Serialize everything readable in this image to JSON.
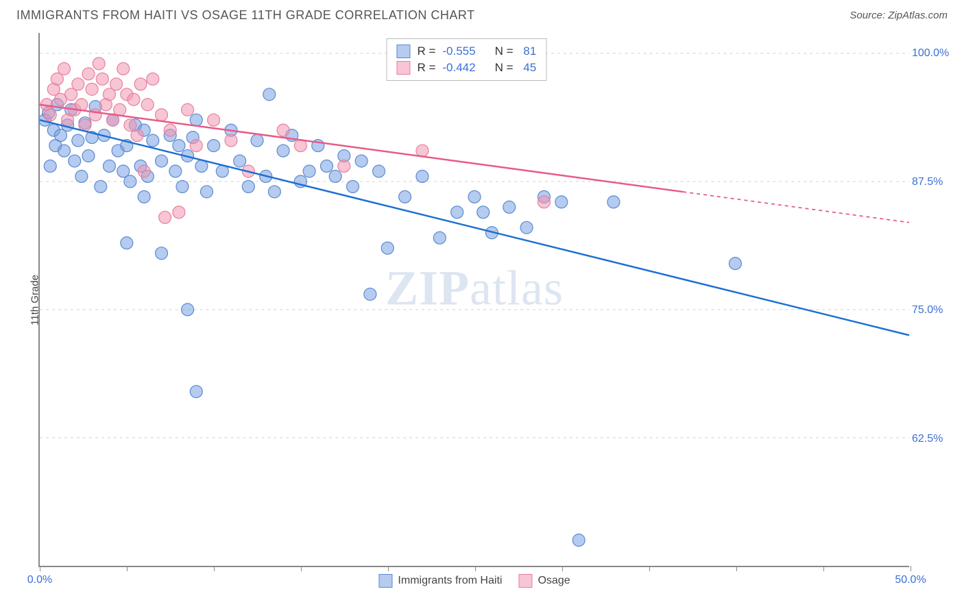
{
  "header": {
    "title": "IMMIGRANTS FROM HAITI VS OSAGE 11TH GRADE CORRELATION CHART",
    "source_prefix": "Source: ",
    "source_name": "ZipAtlas.com"
  },
  "watermark": {
    "zip": "ZIP",
    "atlas": "atlas"
  },
  "chart": {
    "type": "scatter",
    "y_axis_label": "11th Grade",
    "x_range": [
      0,
      50
    ],
    "y_range": [
      50,
      102
    ],
    "x_ticks": [
      0,
      5,
      10,
      15,
      20,
      25,
      30,
      35,
      40,
      45,
      50
    ],
    "x_tick_labels_shown": {
      "0": "0.0%",
      "50": "50.0%"
    },
    "y_ticks": [
      62.5,
      75.0,
      87.5,
      100.0
    ],
    "y_tick_labels": [
      "62.5%",
      "75.0%",
      "87.5%",
      "100.0%"
    ],
    "grid_color": "#cfcfcf",
    "axis_color": "#888888",
    "background_color": "#ffffff",
    "series": [
      {
        "name": "Immigrants from Haiti",
        "color_fill": "rgba(120,160,225,0.55)",
        "color_stroke": "#5a8ad0",
        "line_color": "#1d6fd4",
        "R": "-0.555",
        "N": "81",
        "trend": {
          "x1": 0,
          "y1": 93.5,
          "x2": 50,
          "y2": 72.5,
          "solid_until_x": 50
        },
        "marker_r": 9,
        "points": [
          [
            0.3,
            93.5
          ],
          [
            0.5,
            94.2
          ],
          [
            0.6,
            89.0
          ],
          [
            0.8,
            92.5
          ],
          [
            0.9,
            91.0
          ],
          [
            1.0,
            95.0
          ],
          [
            1.2,
            92.0
          ],
          [
            1.4,
            90.5
          ],
          [
            1.6,
            93.0
          ],
          [
            1.8,
            94.5
          ],
          [
            2.0,
            89.5
          ],
          [
            2.2,
            91.5
          ],
          [
            2.4,
            88.0
          ],
          [
            2.6,
            93.2
          ],
          [
            2.8,
            90.0
          ],
          [
            3.0,
            91.8
          ],
          [
            3.2,
            94.8
          ],
          [
            3.5,
            87.0
          ],
          [
            3.7,
            92.0
          ],
          [
            4.0,
            89.0
          ],
          [
            4.2,
            93.5
          ],
          [
            4.5,
            90.5
          ],
          [
            4.8,
            88.5
          ],
          [
            5.0,
            91.0
          ],
          [
            5.2,
            87.5
          ],
          [
            5.5,
            93.0
          ],
          [
            5.8,
            89.0
          ],
          [
            6.0,
            92.5
          ],
          [
            6.2,
            88.0
          ],
          [
            6.5,
            91.5
          ],
          [
            5.0,
            81.5
          ],
          [
            7.0,
            80.5
          ],
          [
            7.0,
            89.5
          ],
          [
            7.5,
            92.0
          ],
          [
            7.8,
            88.5
          ],
          [
            8.0,
            91.0
          ],
          [
            8.2,
            87.0
          ],
          [
            8.5,
            75.0
          ],
          [
            8.5,
            90.0
          ],
          [
            9.0,
            93.5
          ],
          [
            9.3,
            89.0
          ],
          [
            9.6,
            86.5
          ],
          [
            10.0,
            91.0
          ],
          [
            10.5,
            88.5
          ],
          [
            11.0,
            92.5
          ],
          [
            11.5,
            89.5
          ],
          [
            12.0,
            87.0
          ],
          [
            12.5,
            91.5
          ],
          [
            13.0,
            88.0
          ],
          [
            13.2,
            96.0
          ],
          [
            13.5,
            86.5
          ],
          [
            14.0,
            90.5
          ],
          [
            14.5,
            92.0
          ],
          [
            15.0,
            87.5
          ],
          [
            15.5,
            88.5
          ],
          [
            16.0,
            91.0
          ],
          [
            16.5,
            89.0
          ],
          [
            17.0,
            88.0
          ],
          [
            17.5,
            90.0
          ],
          [
            18.0,
            87.0
          ],
          [
            18.5,
            89.5
          ],
          [
            19.0,
            76.5
          ],
          [
            19.5,
            88.5
          ],
          [
            20.0,
            81.0
          ],
          [
            21.0,
            86.0
          ],
          [
            22.0,
            88.0
          ],
          [
            23.0,
            82.0
          ],
          [
            24.0,
            84.5
          ],
          [
            25.0,
            86.0
          ],
          [
            26.0,
            82.5
          ],
          [
            25.5,
            84.5
          ],
          [
            27.0,
            85.0
          ],
          [
            28.0,
            83.0
          ],
          [
            29.0,
            86.0
          ],
          [
            30.0,
            85.5
          ],
          [
            31.0,
            52.5
          ],
          [
            33.0,
            85.5
          ],
          [
            40.0,
            79.5
          ],
          [
            9.0,
            67.0
          ],
          [
            8.8,
            91.8
          ],
          [
            6.0,
            86.0
          ]
        ]
      },
      {
        "name": "Osage",
        "color_fill": "rgba(240,150,175,0.55)",
        "color_stroke": "#e7809f",
        "line_color": "#e85a88",
        "R": "-0.442",
        "N": "45",
        "trend": {
          "x1": 0,
          "y1": 95.0,
          "x2": 50,
          "y2": 83.5,
          "solid_until_x": 37
        },
        "marker_r": 9,
        "points": [
          [
            0.4,
            95.0
          ],
          [
            0.6,
            94.0
          ],
          [
            0.8,
            96.5
          ],
          [
            1.0,
            97.5
          ],
          [
            1.2,
            95.5
          ],
          [
            1.4,
            98.5
          ],
          [
            1.6,
            93.5
          ],
          [
            1.8,
            96.0
          ],
          [
            2.0,
            94.5
          ],
          [
            2.2,
            97.0
          ],
          [
            2.4,
            95.0
          ],
          [
            2.6,
            93.0
          ],
          [
            2.8,
            98.0
          ],
          [
            3.0,
            96.5
          ],
          [
            3.2,
            94.0
          ],
          [
            3.4,
            99.0
          ],
          [
            3.6,
            97.5
          ],
          [
            3.8,
            95.0
          ],
          [
            4.0,
            96.0
          ],
          [
            4.2,
            93.5
          ],
          [
            4.4,
            97.0
          ],
          [
            4.6,
            94.5
          ],
          [
            4.8,
            98.5
          ],
          [
            5.0,
            96.0
          ],
          [
            5.2,
            93.0
          ],
          [
            5.4,
            95.5
          ],
          [
            5.6,
            92.0
          ],
          [
            5.8,
            97.0
          ],
          [
            6.0,
            88.5
          ],
          [
            6.2,
            95.0
          ],
          [
            6.5,
            97.5
          ],
          [
            7.0,
            94.0
          ],
          [
            7.2,
            84.0
          ],
          [
            7.5,
            92.5
          ],
          [
            8.0,
            84.5
          ],
          [
            8.5,
            94.5
          ],
          [
            9.0,
            91.0
          ],
          [
            10.0,
            93.5
          ],
          [
            11.0,
            91.5
          ],
          [
            12.0,
            88.5
          ],
          [
            14.0,
            92.5
          ],
          [
            15.0,
            91.0
          ],
          [
            17.5,
            89.0
          ],
          [
            22.0,
            90.5
          ],
          [
            29.0,
            85.5
          ]
        ]
      }
    ],
    "legend_top": {
      "R_label": "R =",
      "N_label": "N ="
    },
    "legend_bottom": [
      {
        "label": "Immigrants from Haiti",
        "fill": "rgba(120,160,225,0.55)",
        "stroke": "#5a8ad0"
      },
      {
        "label": "Osage",
        "fill": "rgba(240,150,175,0.55)",
        "stroke": "#e7809f"
      }
    ]
  }
}
